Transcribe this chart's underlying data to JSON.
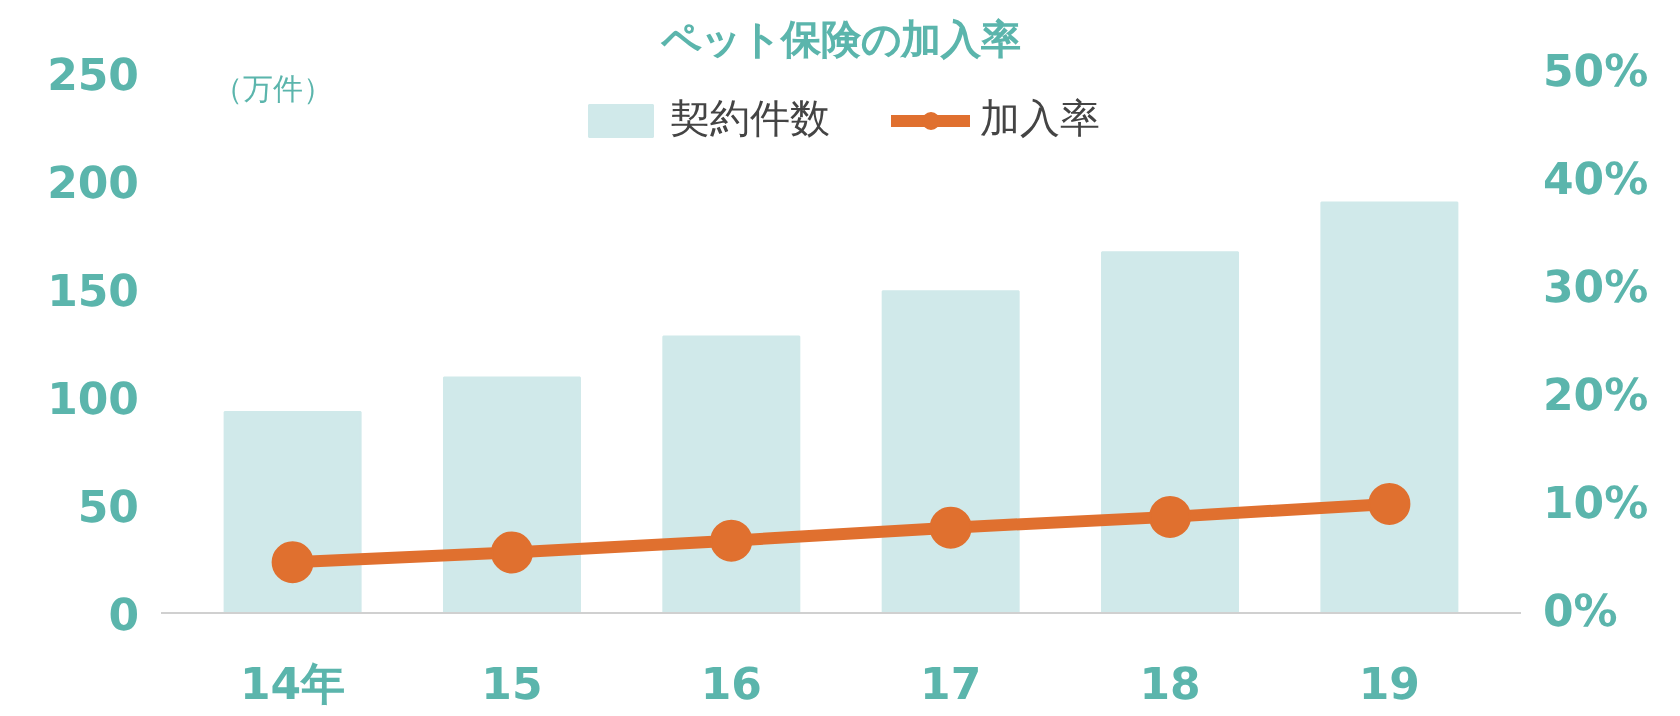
{
  "chart_data": {
    "type": "bar",
    "title": "ペット保険の加入率",
    "ylabel": "（万件）",
    "categories": [
      "14年",
      "15",
      "16",
      "17",
      "18",
      "19"
    ],
    "series": [
      {
        "name": "契約件数",
        "color": "#d0e9ea",
        "values": [
          93,
          109,
          128,
          149,
          167,
          190
        ]
      },
      {
        "name": "加入率",
        "type": "line",
        "axis": "y2",
        "color": "#e0702f",
        "values": [
          4.7,
          5.6,
          6.7,
          7.9,
          8.9,
          10.1
        ]
      }
    ],
    "ylim": [
      0,
      250
    ],
    "yticks": [
      0,
      50,
      100,
      150,
      200,
      250
    ],
    "y2lim": [
      0,
      50
    ],
    "y2ticks": [
      {
        "value": 0,
        "label": "0%"
      },
      {
        "value": 10,
        "label": "10%"
      },
      {
        "value": 20,
        "label": "20%"
      },
      {
        "value": 30,
        "label": "30%"
      },
      {
        "value": 40,
        "label": "40%"
      },
      {
        "value": 50,
        "label": "50%"
      }
    ],
    "legend": "top",
    "marker": "circle",
    "grid": false
  }
}
